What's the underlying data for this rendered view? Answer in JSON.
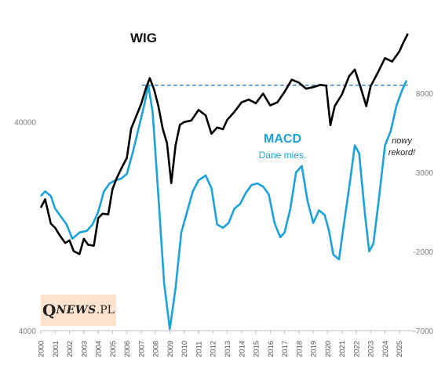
{
  "logo": {
    "q": "Q",
    "news": "NEWS",
    "dot": ".",
    "pl": "PL",
    "bg": "#fbe3cf"
  },
  "chart_data": {
    "type": "line",
    "series": [
      {
        "name": "WIG",
        "axis": "left",
        "scale": "log",
        "color": "#000000",
        "x": [
          2000.0,
          2000.3,
          2000.7,
          2001.0,
          2001.3,
          2001.7,
          2002.0,
          2002.3,
          2002.7,
          2003.0,
          2003.3,
          2003.7,
          2004.0,
          2004.3,
          2004.7,
          2005.0,
          2005.3,
          2005.7,
          2006.0,
          2006.3,
          2006.7,
          2007.0,
          2007.3,
          2007.6,
          2007.9,
          2008.2,
          2008.5,
          2008.8,
          2009.1,
          2009.4,
          2009.7,
          2010.0,
          2010.5,
          2011.0,
          2011.5,
          2011.9,
          2012.3,
          2012.7,
          2013.0,
          2013.5,
          2014.0,
          2014.5,
          2015.0,
          2015.5,
          2016.0,
          2016.5,
          2017.0,
          2017.5,
          2018.0,
          2018.5,
          2019.0,
          2019.5,
          2019.9,
          2020.2,
          2020.5,
          2021.0,
          2021.5,
          2021.9,
          2022.3,
          2022.7,
          2023.0,
          2023.5,
          2024.0,
          2024.5,
          2025.0,
          2025.3,
          2025.6
        ],
        "y": [
          15500,
          17000,
          13000,
          12400,
          11500,
          10500,
          10800,
          9600,
          9300,
          11000,
          10300,
          10200,
          13800,
          14500,
          14400,
          19000,
          21500,
          24500,
          26800,
          37000,
          43200,
          48600,
          57000,
          64600,
          57000,
          47500,
          37000,
          31500,
          20300,
          30800,
          38600,
          39800,
          40500,
          45500,
          42800,
          35000,
          37500,
          36800,
          40800,
          44500,
          49500,
          51000,
          49000,
          54500,
          47800,
          49500,
          55500,
          63500,
          61500,
          57500,
          58500,
          60000,
          59500,
          38500,
          47500,
          54000,
          66000,
          71000,
          58500,
          47500,
          59000,
          68500,
          80500,
          77500,
          86500,
          96000,
          105500
        ]
      },
      {
        "name": "MACD",
        "axis": "right",
        "scale": "linear",
        "color": "#1aa3d9",
        "x": [
          2000.0,
          2000.3,
          2000.7,
          2001.0,
          2001.4,
          2001.8,
          2002.2,
          2002.7,
          2003.2,
          2003.6,
          2004.0,
          2004.4,
          2004.8,
          2005.2,
          2005.6,
          2006.0,
          2006.4,
          2006.8,
          2007.2,
          2007.5,
          2007.8,
          2008.2,
          2008.6,
          2009.0,
          2009.4,
          2009.8,
          2010.2,
          2010.6,
          2011.0,
          2011.5,
          2011.9,
          2012.3,
          2012.7,
          2013.1,
          2013.5,
          2013.9,
          2014.3,
          2014.7,
          2015.1,
          2015.5,
          2015.9,
          2016.3,
          2016.7,
          2017.0,
          2017.4,
          2017.8,
          2018.2,
          2018.6,
          2019.0,
          2019.4,
          2019.8,
          2020.1,
          2020.4,
          2020.8,
          2021.1,
          2021.5,
          2021.9,
          2022.2,
          2022.6,
          2022.9,
          2023.2,
          2023.6,
          2024.0,
          2024.4,
          2024.8,
          2025.2,
          2025.5
        ],
        "y": [
          1500,
          1800,
          1500,
          700,
          200,
          -300,
          -1200,
          -800,
          -700,
          -300,
          500,
          1800,
          2300,
          2500,
          2600,
          2900,
          4200,
          5700,
          7200,
          8500,
          6800,
          1500,
          -4000,
          -6900,
          -4300,
          -800,
          500,
          1800,
          2500,
          2800,
          2000,
          -300,
          -500,
          -200,
          700,
          1000,
          1700,
          2200,
          2300,
          2100,
          1600,
          -200,
          -1100,
          -800,
          700,
          3000,
          3400,
          1200,
          -200,
          600,
          300,
          -700,
          -2200,
          -2500,
          -500,
          2000,
          4700,
          4200,
          400,
          -2000,
          -1500,
          1500,
          4700,
          5600,
          7200,
          8200,
          8800
        ]
      }
    ],
    "x_ticks": [
      "2000",
      "2001",
      "2002",
      "2003",
      "2004",
      "2005",
      "2006",
      "2007",
      "2008",
      "2009",
      "2010",
      "2011",
      "2012",
      "2013",
      "2014",
      "2015",
      "2016",
      "2017",
      "2018",
      "2019",
      "2020",
      "2021",
      "2022",
      "2023",
      "2024",
      "2025"
    ],
    "ylim_left": [
      4000,
      120000
    ],
    "yticks_left": [
      "40000",
      "4000"
    ],
    "ylim_right": [
      -7000,
      12500
    ],
    "yticks_right": [
      "8000",
      "3000",
      "-2000",
      "-7000"
    ],
    "grid": false,
    "reference_line": {
      "axis": "right",
      "value": 8500,
      "x_from": 2007.05,
      "x_to": 2025.6,
      "style": "dashed",
      "color": "#2a7bbf"
    },
    "labels": {
      "wig": "WIG",
      "macd": "MACD",
      "macd_sub": "Dane mies.",
      "record_line1": "nowy",
      "record_line2": "rekord!"
    }
  }
}
